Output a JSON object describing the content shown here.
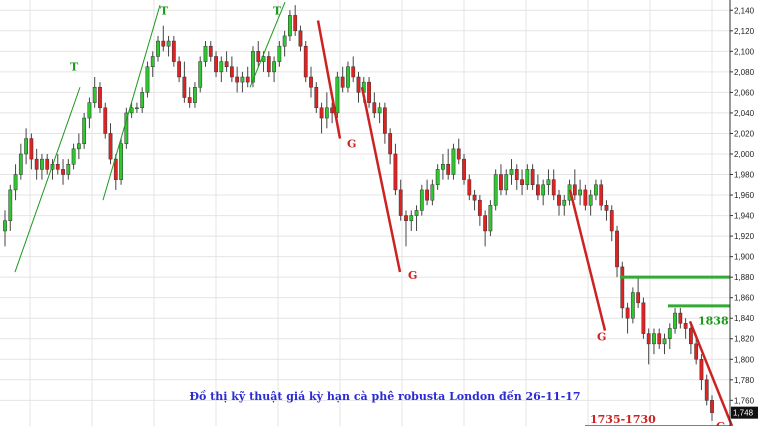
{
  "chart_data": {
    "type": "candlestick",
    "title": "Đồ thị kỹ thuật giá kỳ hạn cà phê robusta London đến 26-11-17",
    "ylim": [
      1735,
      2150
    ],
    "y_ticks": [
      1760,
      1780,
      1800,
      1820,
      1840,
      1860,
      1880,
      1900,
      1920,
      1940,
      1960,
      1980,
      2000,
      2020,
      2040,
      2060,
      2080,
      2100,
      2120,
      2140
    ],
    "last_price_label": "1,748",
    "grid": true,
    "candles": [
      [
        1925,
        1945,
        1910,
        1935
      ],
      [
        1935,
        1970,
        1925,
        1965
      ],
      [
        1965,
        1990,
        1955,
        1980
      ],
      [
        1980,
        2010,
        1975,
        2000
      ],
      [
        2000,
        2025,
        1990,
        2015
      ],
      [
        2015,
        2020,
        1985,
        1995
      ],
      [
        1995,
        2005,
        1975,
        1985
      ],
      [
        1985,
        2000,
        1975,
        1995
      ],
      [
        1995,
        2000,
        1980,
        1985
      ],
      [
        1985,
        1995,
        1975,
        1990
      ],
      [
        1990,
        2000,
        1980,
        1985
      ],
      [
        1985,
        1995,
        1970,
        1980
      ],
      [
        1980,
        1995,
        1975,
        1990
      ],
      [
        1990,
        2010,
        1985,
        2005
      ],
      [
        2005,
        2020,
        1995,
        2010
      ],
      [
        2010,
        2040,
        2005,
        2035
      ],
      [
        2035,
        2055,
        2025,
        2050
      ],
      [
        2050,
        2075,
        2045,
        2065
      ],
      [
        2065,
        2070,
        2040,
        2045
      ],
      [
        2045,
        2050,
        2015,
        2020
      ],
      [
        2020,
        2030,
        1990,
        1995
      ],
      [
        1995,
        2000,
        1965,
        1975
      ],
      [
        1975,
        2015,
        1970,
        2010
      ],
      [
        2010,
        2045,
        2005,
        2040
      ],
      [
        2040,
        2050,
        2035,
        2045
      ],
      [
        2045,
        2050,
        2040,
        2045
      ],
      [
        2045,
        2065,
        2040,
        2060
      ],
      [
        2060,
        2090,
        2055,
        2085
      ],
      [
        2085,
        2100,
        2075,
        2095
      ],
      [
        2095,
        2115,
        2090,
        2110
      ],
      [
        2110,
        2125,
        2100,
        2105
      ],
      [
        2105,
        2115,
        2095,
        2110
      ],
      [
        2110,
        2115,
        2085,
        2090
      ],
      [
        2090,
        2095,
        2070,
        2075
      ],
      [
        2075,
        2090,
        2050,
        2055
      ],
      [
        2055,
        2065,
        2045,
        2050
      ],
      [
        2050,
        2070,
        2045,
        2065
      ],
      [
        2065,
        2095,
        2060,
        2090
      ],
      [
        2090,
        2110,
        2085,
        2105
      ],
      [
        2105,
        2110,
        2090,
        2095
      ],
      [
        2095,
        2100,
        2075,
        2080
      ],
      [
        2080,
        2095,
        2070,
        2090
      ],
      [
        2090,
        2100,
        2080,
        2085
      ],
      [
        2085,
        2095,
        2070,
        2075
      ],
      [
        2075,
        2085,
        2060,
        2070
      ],
      [
        2070,
        2080,
        2060,
        2075
      ],
      [
        2075,
        2085,
        2065,
        2070
      ],
      [
        2070,
        2105,
        2065,
        2100
      ],
      [
        2100,
        2110,
        2085,
        2090
      ],
      [
        2090,
        2100,
        2080,
        2095
      ],
      [
        2095,
        2100,
        2075,
        2080
      ],
      [
        2080,
        2095,
        2070,
        2090
      ],
      [
        2090,
        2110,
        2085,
        2105
      ],
      [
        2105,
        2120,
        2095,
        2115
      ],
      [
        2115,
        2140,
        2110,
        2135
      ],
      [
        2135,
        2145,
        2115,
        2120
      ],
      [
        2120,
        2125,
        2100,
        2105
      ],
      [
        2105,
        2110,
        2070,
        2075
      ],
      [
        2075,
        2085,
        2055,
        2065
      ],
      [
        2065,
        2070,
        2040,
        2045
      ],
      [
        2045,
        2050,
        2020,
        2035
      ],
      [
        2035,
        2060,
        2025,
        2045
      ],
      [
        2045,
        2050,
        2030,
        2040
      ],
      [
        2040,
        2080,
        2035,
        2075
      ],
      [
        2075,
        2085,
        2060,
        2065
      ],
      [
        2065,
        2090,
        2060,
        2085
      ],
      [
        2085,
        2095,
        2070,
        2075
      ],
      [
        2075,
        2080,
        2050,
        2060
      ],
      [
        2060,
        2075,
        2050,
        2070
      ],
      [
        2070,
        2075,
        2045,
        2050
      ],
      [
        2050,
        2060,
        2035,
        2040
      ],
      [
        2040,
        2050,
        2030,
        2045
      ],
      [
        2045,
        2050,
        2010,
        2020
      ],
      [
        2020,
        2025,
        1990,
        2000
      ],
      [
        2000,
        2010,
        1960,
        1965
      ],
      [
        1965,
        1975,
        1935,
        1940
      ],
      [
        1940,
        1945,
        1910,
        1935
      ],
      [
        1935,
        1945,
        1925,
        1940
      ],
      [
        1940,
        1950,
        1925,
        1945
      ],
      [
        1945,
        1970,
        1940,
        1965
      ],
      [
        1965,
        1975,
        1950,
        1955
      ],
      [
        1955,
        1975,
        1950,
        1970
      ],
      [
        1970,
        1990,
        1965,
        1985
      ],
      [
        1985,
        2000,
        1975,
        1990
      ],
      [
        1990,
        2005,
        1975,
        1980
      ],
      [
        1980,
        2010,
        1975,
        2005
      ],
      [
        2005,
        2015,
        1990,
        1995
      ],
      [
        1995,
        2000,
        1970,
        1975
      ],
      [
        1975,
        1980,
        1955,
        1960
      ],
      [
        1960,
        1965,
        1945,
        1955
      ],
      [
        1955,
        1960,
        1930,
        1940
      ],
      [
        1940,
        1945,
        1910,
        1925
      ],
      [
        1925,
        1955,
        1920,
        1950
      ],
      [
        1950,
        1985,
        1945,
        1980
      ],
      [
        1980,
        1990,
        1960,
        1965
      ],
      [
        1965,
        1985,
        1960,
        1980
      ],
      [
        1980,
        1995,
        1970,
        1985
      ],
      [
        1985,
        1990,
        1965,
        1975
      ],
      [
        1975,
        1985,
        1960,
        1970
      ],
      [
        1970,
        1990,
        1965,
        1985
      ],
      [
        1985,
        1990,
        1965,
        1970
      ],
      [
        1970,
        1980,
        1955,
        1960
      ],
      [
        1960,
        1975,
        1950,
        1970
      ],
      [
        1970,
        1985,
        1960,
        1975
      ],
      [
        1975,
        1985,
        1955,
        1960
      ],
      [
        1960,
        1965,
        1940,
        1950
      ],
      [
        1950,
        1960,
        1940,
        1955
      ],
      [
        1955,
        1975,
        1950,
        1970
      ],
      [
        1970,
        1985,
        1955,
        1960
      ],
      [
        1960,
        1975,
        1950,
        1965
      ],
      [
        1965,
        1970,
        1945,
        1950
      ],
      [
        1950,
        1965,
        1940,
        1960
      ],
      [
        1960,
        1975,
        1955,
        1970
      ],
      [
        1970,
        1975,
        1945,
        1950
      ],
      [
        1950,
        1955,
        1935,
        1945
      ],
      [
        1945,
        1950,
        1915,
        1925
      ],
      [
        1925,
        1930,
        1880,
        1890
      ],
      [
        1890,
        1895,
        1840,
        1850
      ],
      [
        1850,
        1855,
        1825,
        1840
      ],
      [
        1840,
        1870,
        1835,
        1865
      ],
      [
        1865,
        1880,
        1850,
        1855
      ],
      [
        1855,
        1860,
        1820,
        1825
      ],
      [
        1825,
        1830,
        1795,
        1815
      ],
      [
        1815,
        1830,
        1805,
        1825
      ],
      [
        1825,
        1830,
        1810,
        1815
      ],
      [
        1815,
        1825,
        1805,
        1820
      ],
      [
        1820,
        1835,
        1810,
        1830
      ],
      [
        1830,
        1850,
        1825,
        1845
      ],
      [
        1845,
        1850,
        1830,
        1835
      ],
      [
        1835,
        1840,
        1820,
        1830
      ],
      [
        1830,
        1835,
        1805,
        1815
      ],
      [
        1815,
        1820,
        1795,
        1800
      ],
      [
        1800,
        1805,
        1770,
        1780
      ],
      [
        1780,
        1785,
        1755,
        1760
      ],
      [
        1760,
        1765,
        1740,
        1748
      ]
    ],
    "annotations": [
      {
        "text": "T",
        "color": "#1a9a1a",
        "x": 70,
        "y": 2085
      },
      {
        "text": "T",
        "color": "#1a9a1a",
        "x": 160,
        "y": 2140
      },
      {
        "text": "T",
        "color": "#1a9a1a",
        "x": 273,
        "y": 2140
      },
      {
        "text": "G",
        "color": "#cc2222",
        "x": 347,
        "y": 2010
      },
      {
        "text": "G",
        "color": "#cc2222",
        "x": 408,
        "y": 1882
      },
      {
        "text": "G",
        "color": "#cc2222",
        "x": 597,
        "y": 1822
      },
      {
        "text": "G",
        "color": "#cc2222",
        "x": 716,
        "y": 1735
      },
      {
        "text": "1838",
        "color": "#1a9a1a",
        "x": 698,
        "y": 1838
      },
      {
        "text": "1735-1730",
        "color": "#cc2222",
        "x": 590,
        "y": 1742
      }
    ],
    "trendlines": [
      {
        "color": "#1a9a1a",
        "from": [
          15,
          1885
        ],
        "to": [
          80,
          2065
        ]
      },
      {
        "color": "#1a9a1a",
        "from": [
          103,
          1955
        ],
        "to": [
          160,
          2145
        ]
      },
      {
        "color": "#1a9a1a",
        "from": [
          250,
          2065
        ],
        "to": [
          285,
          2148
        ]
      },
      {
        "color": "#cc2222",
        "from": [
          318,
          2130
        ],
        "to": [
          340,
          2015
        ]
      },
      {
        "color": "#cc2222",
        "from": [
          362,
          2065
        ],
        "to": [
          400,
          1885
        ]
      },
      {
        "color": "#cc2222",
        "from": [
          570,
          1965
        ],
        "to": [
          605,
          1828
        ]
      },
      {
        "color": "#cc2222",
        "from": [
          690,
          1837
        ],
        "to": [
          732,
          1735
        ]
      }
    ],
    "horizontal_lines": [
      {
        "color": "#33aa33",
        "y": 1880,
        "x1": 620,
        "x2": 730
      },
      {
        "color": "#33aa33",
        "y": 1852,
        "x1": 668,
        "x2": 730
      },
      {
        "color": "#cc2222",
        "y": 1735,
        "x1": 585,
        "x2": 730
      }
    ]
  }
}
